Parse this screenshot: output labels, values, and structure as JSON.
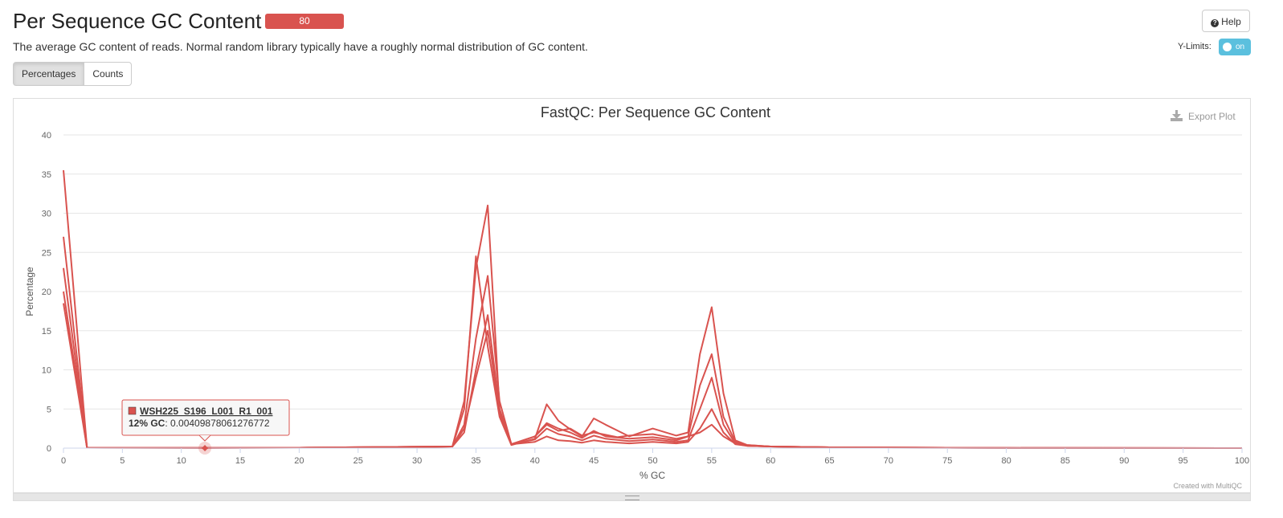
{
  "header": {
    "title": "Per Sequence GC Content",
    "badge": "80",
    "help_label": "Help",
    "description": "The average GC content of reads. Normal random library typically have a roughly normal distribution of GC content.",
    "ylimits_label": "Y-Limits:",
    "ylimits_toggle": "on"
  },
  "tabs": [
    {
      "label": "Percentages",
      "active": true
    },
    {
      "label": "Counts",
      "active": false
    }
  ],
  "plot": {
    "export_label": "Export Plot",
    "credit": "Created with MultiQC",
    "line_color": "#d9534f"
  },
  "tooltip": {
    "sample": "WSH225_S196_L001_R1_001",
    "x_label": "12% GC",
    "value": ": 0.00409878061276772",
    "x": 12,
    "y": 0.0041
  },
  "chart_data": {
    "type": "line",
    "title": "FastQC: Per Sequence GC Content",
    "xlabel": "% GC",
    "ylabel": "Percentage",
    "xlim": [
      0,
      100
    ],
    "ylim": [
      0,
      40
    ],
    "xticks": [
      0,
      5,
      10,
      15,
      20,
      25,
      30,
      35,
      40,
      45,
      50,
      55,
      60,
      65,
      70,
      75,
      80,
      85,
      90,
      95,
      100
    ],
    "yticks": [
      0,
      5,
      10,
      15,
      20,
      25,
      30,
      35,
      40
    ],
    "grid": true,
    "legend": "none",
    "series": [
      {
        "x": [
          0,
          2,
          12,
          20,
          30,
          33,
          34,
          35,
          36,
          37,
          38,
          40,
          41,
          42,
          43,
          44,
          45,
          46,
          47,
          48,
          50,
          52,
          53,
          54,
          55,
          56,
          57,
          58,
          60,
          65,
          70,
          80,
          100
        ],
        "values": [
          35.5,
          0.05,
          0.004,
          0.05,
          0.1,
          0.2,
          6,
          23,
          31,
          5,
          0.5,
          1.5,
          3.0,
          2.2,
          2.5,
          1.6,
          2.0,
          1.7,
          1.4,
          1.6,
          1.8,
          1.2,
          1.5,
          2.0,
          3.0,
          1.5,
          0.6,
          0.4,
          0.2,
          0.1,
          0.05,
          0.02,
          0
        ]
      },
      {
        "x": [
          0,
          2,
          20,
          33,
          34,
          35,
          36,
          37,
          38,
          40,
          41,
          42,
          43,
          44,
          45,
          46,
          48,
          50,
          52,
          53,
          54,
          55,
          56,
          57,
          58,
          60,
          65,
          80,
          100
        ],
        "values": [
          27,
          0.05,
          0.05,
          0.2,
          5,
          24.5,
          13,
          4,
          0.4,
          1.2,
          5.6,
          3.5,
          2.4,
          1.5,
          3.8,
          3.0,
          1.5,
          2.5,
          1.6,
          2.0,
          12,
          18,
          7,
          1.0,
          0.4,
          0.2,
          0.1,
          0.02,
          0
        ]
      },
      {
        "x": [
          0,
          2,
          20,
          33,
          34,
          35,
          36,
          37,
          38,
          40,
          41,
          42,
          43,
          44,
          45,
          46,
          48,
          50,
          52,
          53,
          54,
          55,
          56,
          57,
          58,
          60,
          65,
          80,
          100
        ],
        "values": [
          23,
          0.05,
          0.05,
          0.2,
          3,
          14,
          22,
          6,
          0.5,
          1.5,
          3.2,
          2.5,
          2.0,
          1.3,
          2.2,
          1.5,
          1.2,
          1.4,
          1.0,
          1.5,
          8,
          12,
          4,
          0.8,
          0.3,
          0.2,
          0.1,
          0.02,
          0
        ]
      },
      {
        "x": [
          0,
          2,
          20,
          33,
          34,
          35,
          36,
          37,
          38,
          40,
          41,
          42,
          43,
          44,
          45,
          46,
          48,
          50,
          52,
          53,
          54,
          55,
          56,
          57,
          58,
          60,
          65,
          80,
          100
        ],
        "values": [
          20,
          0.05,
          0.05,
          0.2,
          2,
          10,
          17,
          5,
          0.5,
          1.1,
          2.5,
          1.8,
          1.5,
          1.0,
          1.6,
          1.2,
          0.9,
          1.1,
          0.8,
          1.0,
          5,
          9,
          3,
          0.6,
          0.3,
          0.2,
          0.1,
          0.02,
          0
        ]
      },
      {
        "x": [
          0,
          2,
          20,
          33,
          34,
          35,
          36,
          37,
          38,
          40,
          41,
          42,
          43,
          44,
          45,
          46,
          48,
          50,
          52,
          53,
          54,
          55,
          56,
          57,
          58,
          60,
          65,
          80,
          100
        ],
        "values": [
          18.5,
          0.05,
          0.05,
          0.2,
          2.5,
          9,
          15,
          4.5,
          0.5,
          0.8,
          1.5,
          1.0,
          0.9,
          0.7,
          1.0,
          0.8,
          0.6,
          0.8,
          0.6,
          0.8,
          2.5,
          5,
          2,
          0.5,
          0.3,
          0.2,
          0.1,
          0.02,
          0
        ]
      }
    ]
  }
}
